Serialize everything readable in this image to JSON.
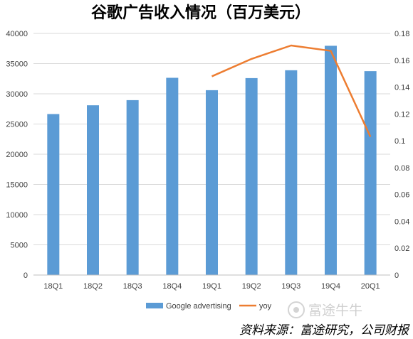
{
  "chart_data": {
    "type": "bar",
    "title": "谷歌广告收入情况（百万美元）",
    "categories": [
      "18Q1",
      "18Q2",
      "18Q3",
      "18Q4",
      "19Q1",
      "19Q2",
      "19Q3",
      "19Q4",
      "20Q1"
    ],
    "series": [
      {
        "name": "Google advertising",
        "type": "bar",
        "axis": "left",
        "color": "#5b9bd5",
        "values": [
          26650,
          28100,
          28950,
          32650,
          30600,
          32600,
          33900,
          37950,
          33750
        ]
      },
      {
        "name": "yoy",
        "type": "line",
        "axis": "right",
        "color": "#ed7d31",
        "values": [
          null,
          null,
          null,
          null,
          0.148,
          0.161,
          0.171,
          0.167,
          0.103
        ]
      }
    ],
    "y_left": {
      "min": 0,
      "max": 40000,
      "step": 5000,
      "ticks": [
        "0",
        "5000",
        "10000",
        "15000",
        "20000",
        "25000",
        "30000",
        "35000",
        "40000"
      ]
    },
    "y_right": {
      "min": 0,
      "max": 0.18,
      "step": 0.02,
      "ticks": [
        "0",
        "0.02",
        "0.04",
        "0.06",
        "0.08",
        "0.1",
        "0.12",
        "0.14",
        "0.16",
        "0.18"
      ]
    },
    "grid": true,
    "legend_position": "bottom"
  },
  "watermark": "富途牛牛",
  "source": "资料来源：富途研究，公司财报"
}
